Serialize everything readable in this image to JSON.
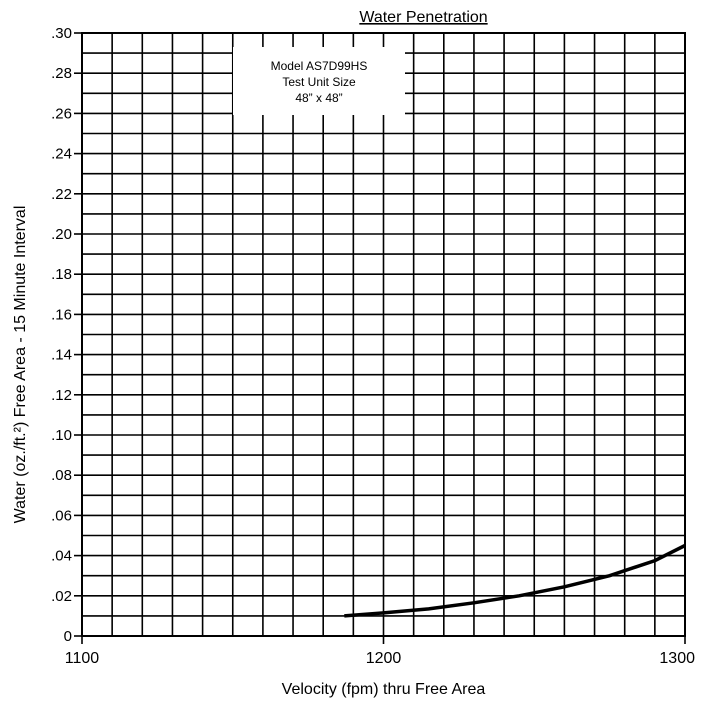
{
  "chart_data": {
    "type": "line",
    "title": "Water Penetration",
    "xlabel": "Velocity (fpm) thru Free Area",
    "ylabel": "Water (oz./ft.²) Free Area - 15 Minute Interval",
    "xlim": [
      1100,
      1300
    ],
    "ylim": [
      0,
      0.3
    ],
    "xticks": [
      "1100",
      "1200",
      "1300"
    ],
    "yticks": [
      "0",
      ".02",
      ".04",
      ".06",
      ".08",
      ".10",
      ".12",
      ".14",
      ".16",
      ".18",
      ".20",
      ".22",
      ".24",
      ".26",
      ".28",
      ".30"
    ],
    "grid": true,
    "annotation": [
      "Model AS7D99HS",
      "Test Unit Size",
      "48” x 48”"
    ],
    "series": [
      {
        "x": [
          1187,
          1200,
          1215,
          1230,
          1245,
          1260,
          1275,
          1290,
          1300
        ],
        "y": [
          0.01,
          0.0115,
          0.0135,
          0.0165,
          0.02,
          0.0245,
          0.03,
          0.0375,
          0.045
        ]
      }
    ]
  }
}
